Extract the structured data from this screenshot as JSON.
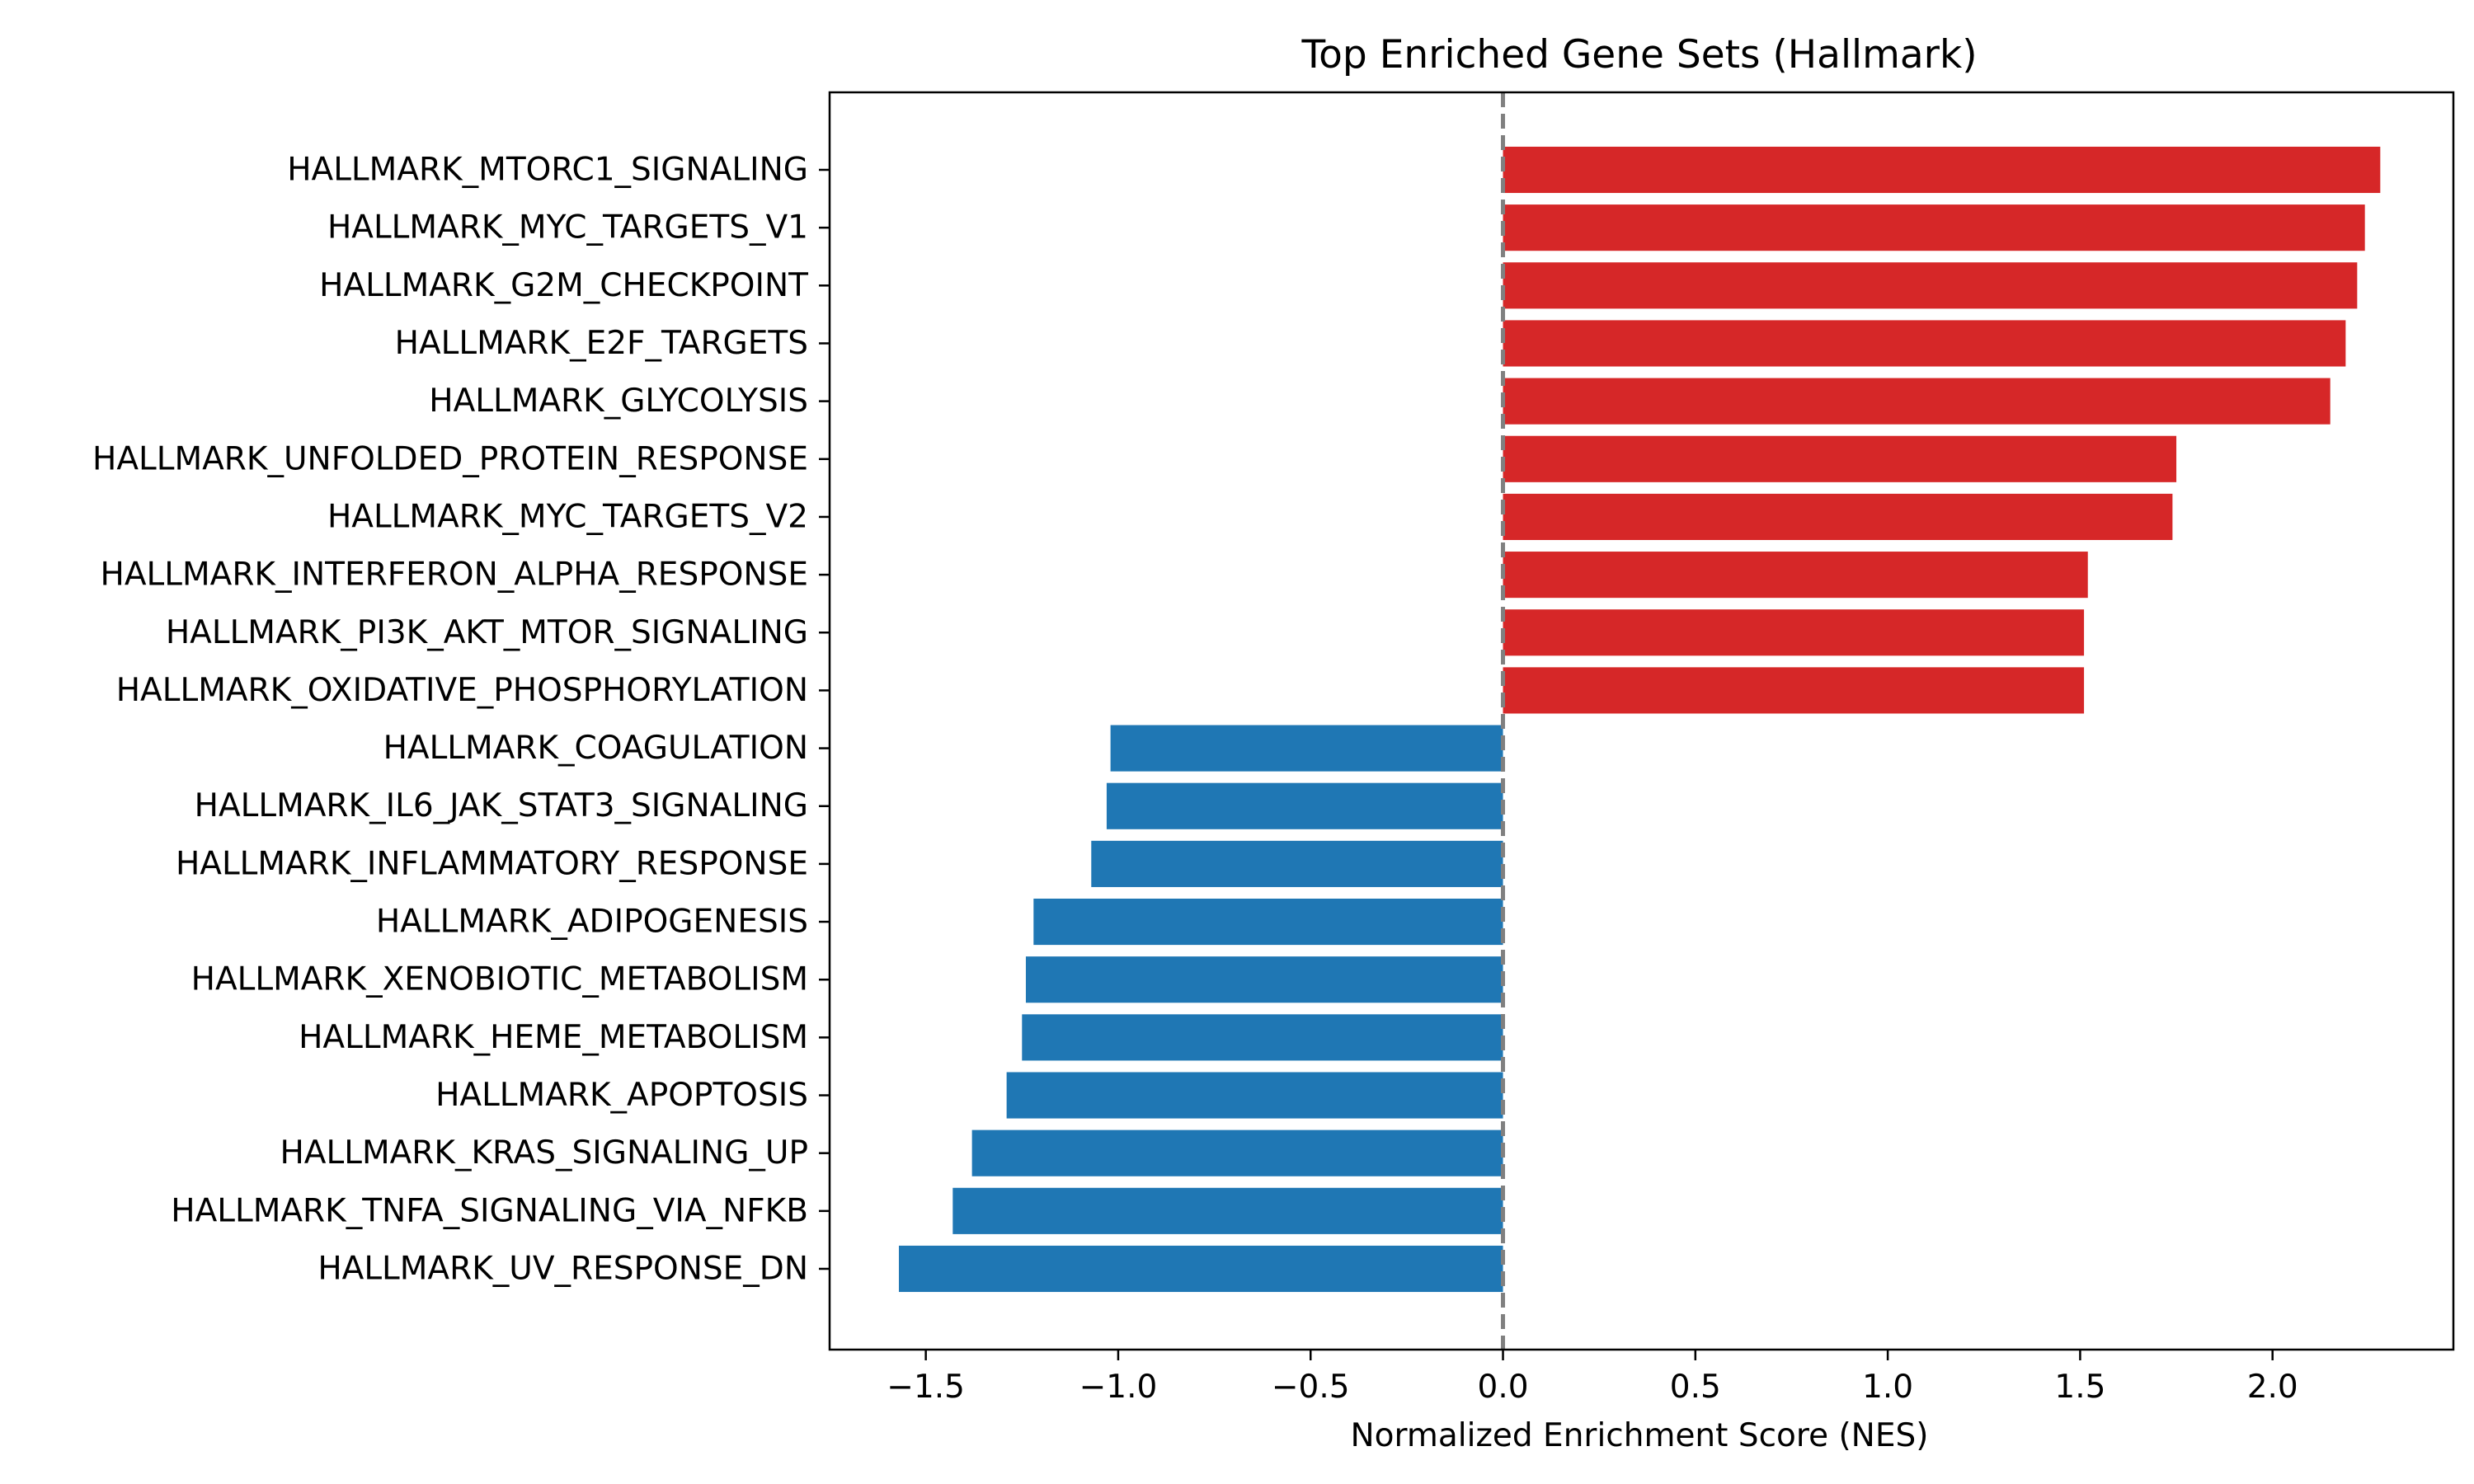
{
  "chart_data": {
    "type": "bar",
    "orientation": "horizontal",
    "title": "Top Enriched Gene Sets (Hallmark)",
    "xlabel": "Normalized Enrichment Score (NES)",
    "ylabel": "",
    "xlim": [
      -1.75,
      2.47
    ],
    "xticks": [
      -1.5,
      -1.0,
      -0.5,
      0.0,
      0.5,
      1.0,
      1.5,
      2.0
    ],
    "xtick_labels": [
      "−1.5",
      "−1.0",
      "−0.5",
      "0.0",
      "0.5",
      "1.0",
      "1.5",
      "2.0"
    ],
    "reference_line": {
      "x": 0.0,
      "style": "dashed",
      "color": "#808080"
    },
    "colors": {
      "positive": "#d62728",
      "negative": "#1f77b4"
    },
    "grid": false,
    "categories": [
      "HALLMARK_MTORC1_SIGNALING",
      "HALLMARK_MYC_TARGETS_V1",
      "HALLMARK_G2M_CHECKPOINT",
      "HALLMARK_E2F_TARGETS",
      "HALLMARK_GLYCOLYSIS",
      "HALLMARK_UNFOLDED_PROTEIN_RESPONSE",
      "HALLMARK_MYC_TARGETS_V2",
      "HALLMARK_INTERFERON_ALPHA_RESPONSE",
      "HALLMARK_PI3K_AKT_MTOR_SIGNALING",
      "HALLMARK_OXIDATIVE_PHOSPHORYLATION",
      "HALLMARK_COAGULATION",
      "HALLMARK_IL6_JAK_STAT3_SIGNALING",
      "HALLMARK_INFLAMMATORY_RESPONSE",
      "HALLMARK_ADIPOGENESIS",
      "HALLMARK_XENOBIOTIC_METABOLISM",
      "HALLMARK_HEME_METABOLISM",
      "HALLMARK_APOPTOSIS",
      "HALLMARK_KRAS_SIGNALING_UP",
      "HALLMARK_TNFA_SIGNALING_VIA_NFKB",
      "HALLMARK_UV_RESPONSE_DN"
    ],
    "values": [
      2.28,
      2.24,
      2.22,
      2.19,
      2.15,
      1.75,
      1.74,
      1.52,
      1.51,
      1.51,
      -1.02,
      -1.03,
      -1.07,
      -1.22,
      -1.24,
      -1.25,
      -1.29,
      -1.38,
      -1.43,
      -1.57
    ]
  }
}
